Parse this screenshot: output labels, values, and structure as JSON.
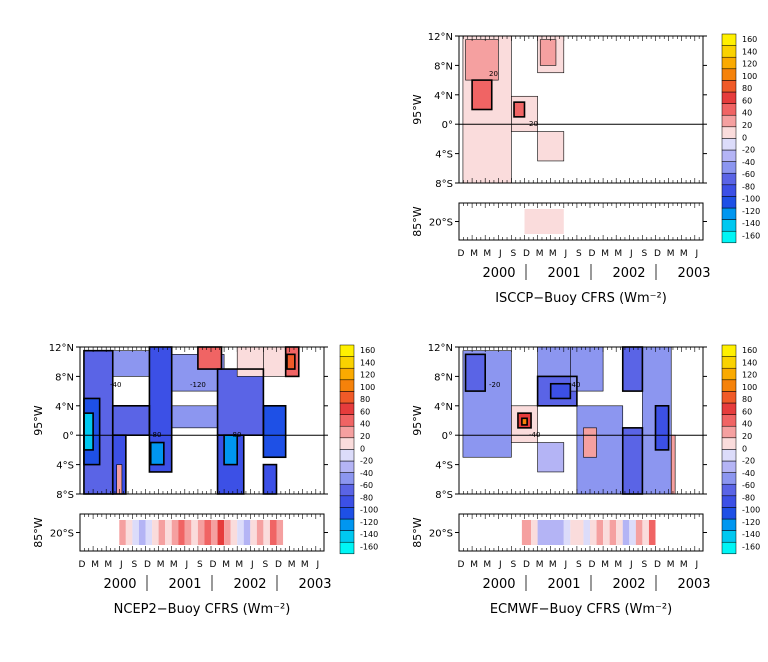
{
  "colors": {
    "scale": [
      "#00f5f5",
      "#00c8f0",
      "#0096f0",
      "#1e50e6",
      "#3c50e6",
      "#5a64e6",
      "#8c96f0",
      "#b4b4f5",
      "#dcdcfa",
      "#fadcdc",
      "#f5a0a0",
      "#f06464",
      "#e63c3c",
      "#f05a28",
      "#f5820a",
      "#faaa00",
      "#fad200",
      "#fff000"
    ],
    "zero_contour": "#000000"
  },
  "colorbar_labels": [
    "160",
    "140",
    "120",
    "100",
    "80",
    "60",
    "40",
    "20",
    "0",
    "-20",
    "-40",
    "-60",
    "-80",
    "-100",
    "-120",
    "-140",
    "-160"
  ],
  "chart_data": [
    {
      "type": "heatmap",
      "title": "ISCCP−Buoy CFRS (Wm⁻²)",
      "top_y_label": "95°W",
      "top_y_ticks": [
        "12°N",
        "8°N",
        "4°N",
        "0°",
        "4°S",
        "8°S"
      ],
      "bottom_y_label": "85°W",
      "bottom_y_ticks": [
        "20°S"
      ],
      "month_labels": [
        "D",
        "M",
        "M",
        "J",
        "S",
        "D",
        "M",
        "M",
        "J",
        "S",
        "D",
        "M",
        "M",
        "J",
        "S",
        "D",
        "M",
        "M",
        "J"
      ],
      "year_labels": [
        "2000",
        "2001",
        "2002",
        "2003"
      ],
      "contour_labels": [
        "20",
        "20"
      ],
      "zlim": [
        -160,
        160
      ],
      "top_cells": [
        {
          "t": [
            0.3,
            4.0
          ],
          "lat": [
            12,
            -8
          ],
          "v": 20
        },
        {
          "t": [
            0.5,
            3.0
          ],
          "lat": [
            11.5,
            6
          ],
          "v": 40
        },
        {
          "t": [
            1.0,
            2.5
          ],
          "lat": [
            6,
            2
          ],
          "v": 60
        },
        {
          "t": [
            4.0,
            6.0
          ],
          "lat": [
            3.8,
            -1
          ],
          "v": 20
        },
        {
          "t": [
            4.2,
            5.0
          ],
          "lat": [
            3,
            1
          ],
          "v": 60
        },
        {
          "t": [
            6.0,
            8.0
          ],
          "lat": [
            12,
            7
          ],
          "v": 20
        },
        {
          "t": [
            6.2,
            7.4
          ],
          "lat": [
            11.5,
            8
          ],
          "v": 40
        },
        {
          "t": [
            6.0,
            8.0
          ],
          "lat": [
            -1,
            -5
          ],
          "v": 20
        }
      ],
      "bottom_cells": [
        {
          "t": [
            5.0,
            8.0
          ],
          "v": 20
        }
      ]
    },
    {
      "type": "heatmap",
      "title": "NCEP2−Buoy CFRS (Wm⁻²)",
      "top_y_label": "95°W",
      "top_y_ticks": [
        "12°N",
        "8°N",
        "4°N",
        "0°",
        "4°S",
        "8°S"
      ],
      "bottom_y_label": "85°W",
      "bottom_y_ticks": [
        "20°S"
      ],
      "month_labels": [
        "D",
        "M",
        "M",
        "J",
        "S",
        "D",
        "M",
        "M",
        "J",
        "S",
        "D",
        "M",
        "M",
        "J",
        "S",
        "D",
        "M",
        "M",
        "J"
      ],
      "year_labels": [
        "2000",
        "2001",
        "2002",
        "2003"
      ],
      "contour_labels": [
        "-40",
        "-80",
        "-120",
        "-80"
      ],
      "zlim": [
        -160,
        160
      ],
      "top_cells": [
        {
          "t": [
            0.3,
            2.5
          ],
          "lat": [
            11.5,
            -8
          ],
          "v": -60
        },
        {
          "t": [
            0.3,
            1.5
          ],
          "lat": [
            5,
            -4
          ],
          "v": -100
        },
        {
          "t": [
            0.3,
            1.0
          ],
          "lat": [
            3,
            -2
          ],
          "v": -140
        },
        {
          "t": [
            2.5,
            5.3
          ],
          "lat": [
            11.5,
            8
          ],
          "v": -40
        },
        {
          "t": [
            2.5,
            5.3
          ],
          "lat": [
            4,
            0
          ],
          "v": -60
        },
        {
          "t": [
            2.5,
            3.5
          ],
          "lat": [
            0,
            -8
          ],
          "v": -80
        },
        {
          "t": [
            2.8,
            3.2
          ],
          "lat": [
            -4,
            -8
          ],
          "v": 40
        },
        {
          "t": [
            5.3,
            7.0
          ],
          "lat": [
            12,
            -5
          ],
          "v": -80
        },
        {
          "t": [
            5.4,
            6.4
          ],
          "lat": [
            -1,
            -4
          ],
          "v": -120
        },
        {
          "t": [
            7.0,
            11.0
          ],
          "lat": [
            11,
            6
          ],
          "v": -40
        },
        {
          "t": [
            7.0,
            10.5
          ],
          "lat": [
            4,
            1
          ],
          "v": -40
        },
        {
          "t": [
            9.0,
            10.8
          ],
          "lat": [
            12,
            9
          ],
          "v": 60
        },
        {
          "t": [
            10.5,
            14.0
          ],
          "lat": [
            9,
            0
          ],
          "v": -60
        },
        {
          "t": [
            10.5,
            12.5
          ],
          "lat": [
            0,
            -8
          ],
          "v": -80
        },
        {
          "t": [
            11.0,
            12.0
          ],
          "lat": [
            0,
            -4
          ],
          "v": -120
        },
        {
          "t": [
            12.0,
            14.0
          ],
          "lat": [
            12,
            8
          ],
          "v": 20
        },
        {
          "t": [
            14.0,
            15.7
          ],
          "lat": [
            12,
            8
          ],
          "v": 20
        },
        {
          "t": [
            14.0,
            15.7
          ],
          "lat": [
            4,
            -3
          ],
          "v": -100
        },
        {
          "t": [
            15.7,
            16.7
          ],
          "lat": [
            12,
            8
          ],
          "v": 60
        },
        {
          "t": [
            15.8,
            16.4
          ],
          "lat": [
            11,
            9
          ],
          "v": 100
        },
        {
          "t": [
            14.0,
            15.0
          ],
          "lat": [
            -4,
            -8
          ],
          "v": -80
        }
      ],
      "bottom_cells": [
        {
          "t": [
            3.0,
            3.5
          ],
          "v": 40
        },
        {
          "t": [
            3.5,
            4.0
          ],
          "v": 20
        },
        {
          "t": [
            4.0,
            4.5
          ],
          "v": 0
        },
        {
          "t": [
            4.5,
            5.0
          ],
          "v": -20
        },
        {
          "t": [
            5.0,
            5.5
          ],
          "v": 0
        },
        {
          "t": [
            5.5,
            6.0
          ],
          "v": 20
        },
        {
          "t": [
            6.0,
            6.5
          ],
          "v": 40
        },
        {
          "t": [
            6.5,
            7.0
          ],
          "v": 20
        },
        {
          "t": [
            7.0,
            7.5
          ],
          "v": 40
        },
        {
          "t": [
            7.5,
            8.0
          ],
          "v": 60
        },
        {
          "t": [
            8.0,
            8.5
          ],
          "v": 40
        },
        {
          "t": [
            8.5,
            9.0
          ],
          "v": 20
        },
        {
          "t": [
            9.0,
            9.5
          ],
          "v": 40
        },
        {
          "t": [
            9.5,
            10.0
          ],
          "v": 60
        },
        {
          "t": [
            10.0,
            10.5
          ],
          "v": 40
        },
        {
          "t": [
            10.5,
            11.0
          ],
          "v": 80
        },
        {
          "t": [
            11.0,
            11.5
          ],
          "v": 40
        },
        {
          "t": [
            11.5,
            12.0
          ],
          "v": 20
        },
        {
          "t": [
            12.0,
            12.5
          ],
          "v": 0
        },
        {
          "t": [
            12.5,
            13.0
          ],
          "v": -20
        },
        {
          "t": [
            13.0,
            13.5
          ],
          "v": 20
        },
        {
          "t": [
            13.5,
            14.0
          ],
          "v": 40
        },
        {
          "t": [
            14.0,
            14.5
          ],
          "v": 20
        },
        {
          "t": [
            14.5,
            15.0
          ],
          "v": 60
        },
        {
          "t": [
            15.0,
            15.5
          ],
          "v": 40
        }
      ]
    },
    {
      "type": "heatmap",
      "title": "ECMWF−Buoy CFRS (Wm⁻²)",
      "top_y_label": "95°W",
      "top_y_ticks": [
        "12°N",
        "8°N",
        "4°N",
        "0°",
        "4°S",
        "8°S"
      ],
      "bottom_y_label": "85°W",
      "bottom_y_ticks": [
        "20°S"
      ],
      "month_labels": [
        "D",
        "M",
        "M",
        "J",
        "S",
        "D",
        "M",
        "M",
        "J",
        "S",
        "D",
        "M",
        "M",
        "J",
        "S",
        "D",
        "M",
        "M",
        "J"
      ],
      "year_labels": [
        "2000",
        "2001",
        "2002",
        "2003"
      ],
      "contour_labels": [
        "-20",
        "-40",
        "-40"
      ],
      "zlim": [
        -160,
        160
      ],
      "top_cells": [
        {
          "t": [
            0.3,
            4.0
          ],
          "lat": [
            11.5,
            -3
          ],
          "v": -40
        },
        {
          "t": [
            0.5,
            2.0
          ],
          "lat": [
            11,
            6
          ],
          "v": -60
        },
        {
          "t": [
            4.0,
            6.0
          ],
          "lat": [
            4,
            -1
          ],
          "v": 20
        },
        {
          "t": [
            4.5,
            5.5
          ],
          "lat": [
            3,
            1
          ],
          "v": 80
        },
        {
          "t": [
            4.8,
            5.2
          ],
          "lat": [
            2.3,
            1.4
          ],
          "v": 120
        },
        {
          "t": [
            6.0,
            8.5
          ],
          "lat": [
            12,
            8
          ],
          "v": -40
        },
        {
          "t": [
            6.0,
            9.0
          ],
          "lat": [
            8,
            4
          ],
          "v": -60
        },
        {
          "t": [
            7.0,
            8.5
          ],
          "lat": [
            7,
            5
          ],
          "v": -80
        },
        {
          "t": [
            6.0,
            8.0
          ],
          "lat": [
            -1,
            -5
          ],
          "v": -20
        },
        {
          "t": [
            8.5,
            11.0
          ],
          "lat": [
            12,
            6
          ],
          "v": -40
        },
        {
          "t": [
            9.0,
            12.5
          ],
          "lat": [
            4,
            -8
          ],
          "v": -40
        },
        {
          "t": [
            9.5,
            10.5
          ],
          "lat": [
            1,
            -3
          ],
          "v": 40
        },
        {
          "t": [
            12.5,
            14.0
          ],
          "lat": [
            12,
            6
          ],
          "v": -60
        },
        {
          "t": [
            12.5,
            14.0
          ],
          "lat": [
            1,
            -8
          ],
          "v": -60
        },
        {
          "t": [
            14.0,
            16.2
          ],
          "lat": [
            12,
            -8
          ],
          "v": -40
        },
        {
          "t": [
            15.0,
            16.0
          ],
          "lat": [
            4,
            -2
          ],
          "v": -80
        },
        {
          "t": [
            16.2,
            16.5
          ],
          "lat": [
            0,
            -8
          ],
          "v": 40
        }
      ],
      "bottom_cells": [
        {
          "t": [
            4.8,
            5.5
          ],
          "v": 40
        },
        {
          "t": [
            5.5,
            6.0
          ],
          "v": 20
        },
        {
          "t": [
            6.0,
            8.0
          ],
          "v": -20
        },
        {
          "t": [
            8.0,
            8.5
          ],
          "v": 0
        },
        {
          "t": [
            8.5,
            9.5
          ],
          "v": 20
        },
        {
          "t": [
            9.5,
            10.0
          ],
          "v": 0
        },
        {
          "t": [
            10.0,
            10.5
          ],
          "v": 20
        },
        {
          "t": [
            10.5,
            11.0
          ],
          "v": 40
        },
        {
          "t": [
            11.0,
            11.5
          ],
          "v": 20
        },
        {
          "t": [
            11.5,
            12.0
          ],
          "v": 40
        },
        {
          "t": [
            12.0,
            12.5
          ],
          "v": 20
        },
        {
          "t": [
            12.5,
            13.0
          ],
          "v": -20
        },
        {
          "t": [
            13.0,
            13.5
          ],
          "v": 0
        },
        {
          "t": [
            13.5,
            14.0
          ],
          "v": 40
        },
        {
          "t": [
            14.0,
            14.5
          ],
          "v": 20
        },
        {
          "t": [
            14.5,
            15.0
          ],
          "v": 60
        }
      ]
    }
  ]
}
